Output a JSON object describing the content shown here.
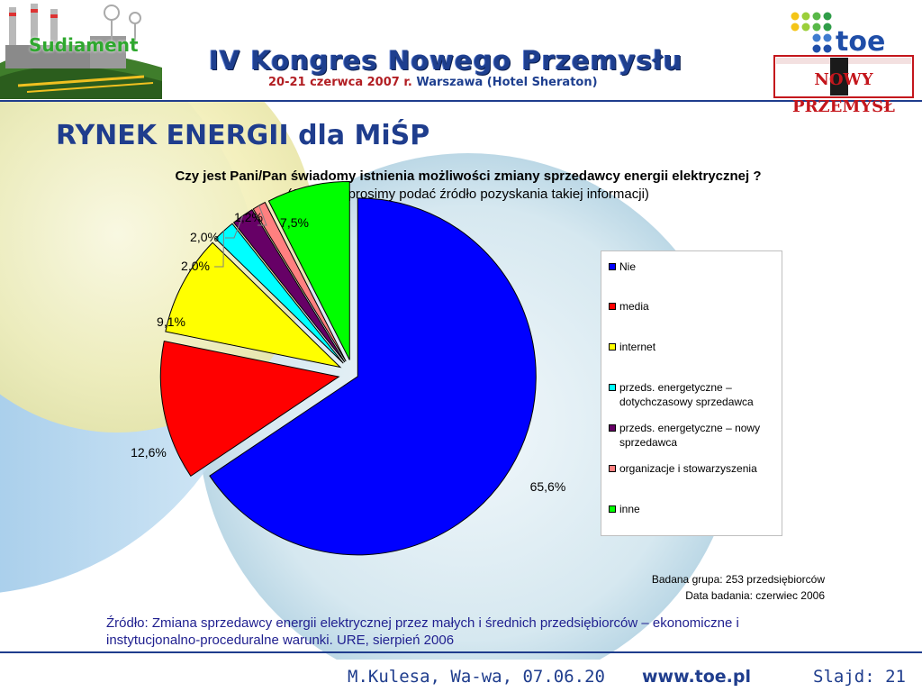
{
  "header": {
    "brand": "Sudiament",
    "title": "IV Kongres Nowego Przemysłu",
    "date": "20-21 czerwca 2007 r.",
    "venue": "Warszawa (Hotel Sheraton)",
    "logo_toe": "toe",
    "logo_np": "NOWY PRZEMYSŁ",
    "logo_np_letter": "P"
  },
  "slide_title": "RYNEK ENERGII dla MiŚP",
  "question": {
    "bold": "Czy jest Pani/Pan świadomy istnienia możliwości zmiany sprzedawcy energii elektrycznej ?",
    "normal": " (Jeśli tak, prosimy podać źródło pozyskania takiej informacji)"
  },
  "chart_data": {
    "type": "pie",
    "title": "Czy jest Pani/Pan świadomy istnienia możliwości zmiany sprzedawcy energii elektrycznej ? (Jeśli tak, prosimy podać źródło pozyskania takiej informacji)",
    "categories": [
      "Nie",
      "media",
      "internet",
      "przeds. energetyczne – dotychczasowy sprzedawca",
      "przeds. energetyczne – nowy sprzedawca",
      "organizacje i stowarzyszenia",
      "inne"
    ],
    "values": [
      65.6,
      12.6,
      9.1,
      2.0,
      2.0,
      1.2,
      7.5
    ],
    "labels": [
      "65,6%",
      "12,6%",
      "9,1%",
      "2,0%",
      "2,0%",
      "1,2%",
      "7,5%"
    ],
    "colors": [
      "#0000ff",
      "#ff0000",
      "#ffff00",
      "#00ffff",
      "#660066",
      "#ff8080",
      "#00ff00"
    ],
    "exploded": true,
    "legend": "right"
  },
  "info": {
    "group": "Badana grupa: 253 przedsiębiorców",
    "date": "Data badania: czerwiec 2006"
  },
  "source": "Źródło: Zmiana sprzedawcy energii elektrycznej przez małych  i średnich przedsiębiorców – ekonomiczne i instytucjonalno-proceduralne warunki. URE, sierpień 2006",
  "footer": {
    "author": "M.Kulesa, Wa-wa, 07.06.20",
    "url": "www.toe.pl",
    "slide": "Slajd: 21"
  }
}
